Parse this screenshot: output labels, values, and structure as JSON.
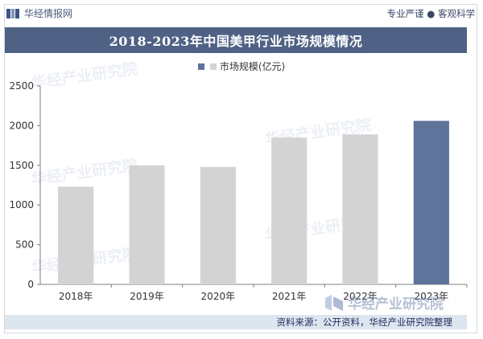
{
  "header": {
    "brand": "华经情报网",
    "slogan": "专业严谨 ● 客观科学"
  },
  "chart_data": {
    "type": "bar",
    "title": "2018-2023年中国美甲行业市场规模情况",
    "categories": [
      "2018年",
      "2019年",
      "2020年",
      "2021年",
      "2022年",
      "2023年"
    ],
    "series": [
      {
        "name": "市场规模(亿元)",
        "values": [
          1230,
          1500,
          1480,
          1850,
          1890,
          2060
        ]
      }
    ],
    "highlight_index": 5,
    "ylim": [
      0,
      2500
    ],
    "yticks": [
      0,
      500,
      1000,
      1500,
      2000,
      2500
    ],
    "grid": false,
    "legend_position": "top-center",
    "colors": {
      "bar": "#d3d3d3",
      "highlight": "#5f739b",
      "axis": "#7f7f7f"
    }
  },
  "footer": {
    "source": "资料来源：公开资料，华经产业研究院整理"
  },
  "watermark": {
    "text": "华经产业研究院"
  }
}
